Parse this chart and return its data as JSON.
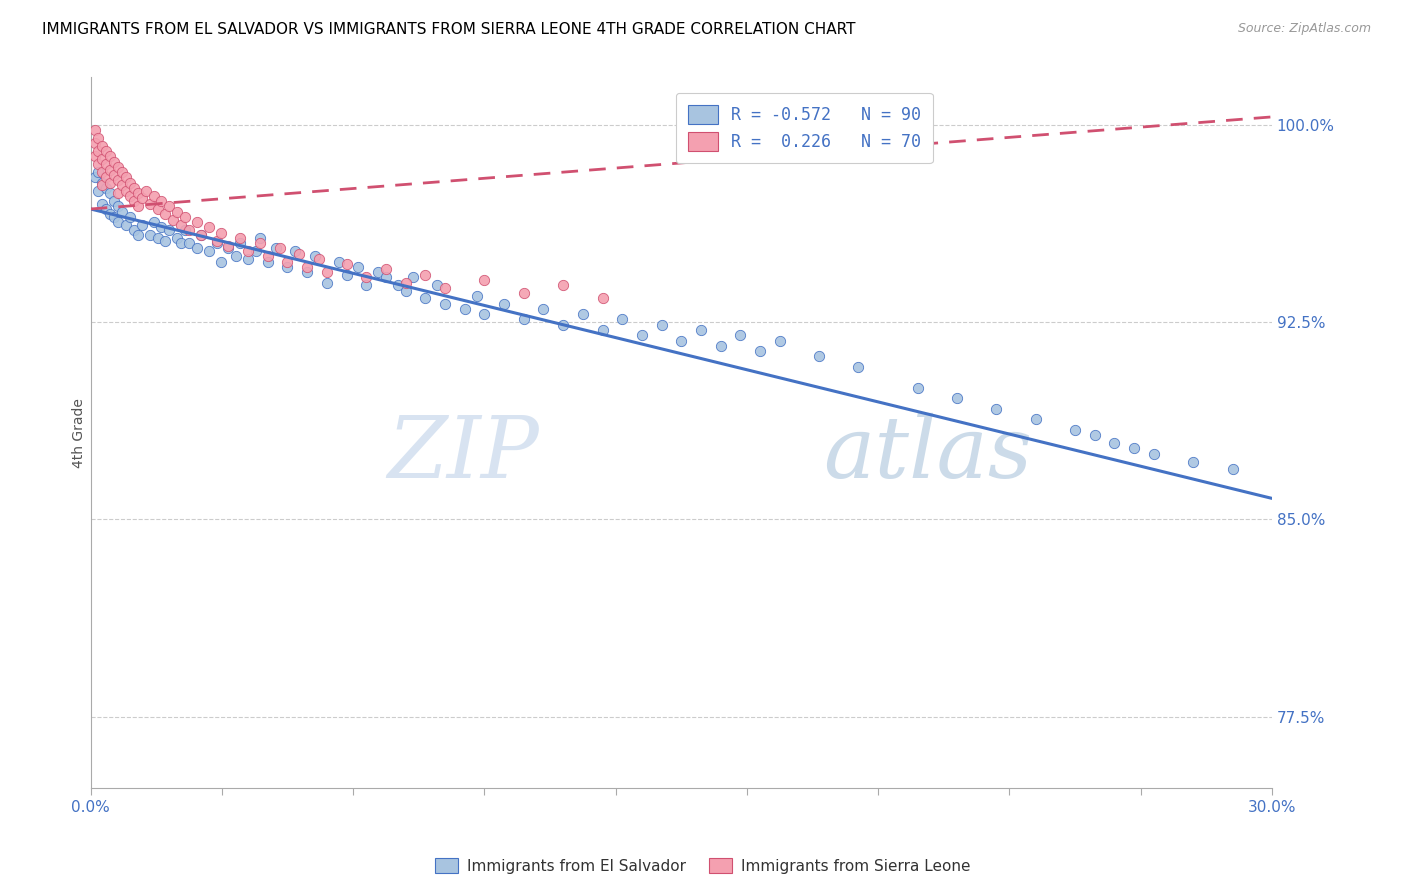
{
  "title": "IMMIGRANTS FROM EL SALVADOR VS IMMIGRANTS FROM SIERRA LEONE 4TH GRADE CORRELATION CHART",
  "source": "Source: ZipAtlas.com",
  "ylabel": "4th Grade",
  "yticks": [
    1.0,
    0.925,
    0.85,
    0.775
  ],
  "ytick_labels": [
    "100.0%",
    "92.5%",
    "85.0%",
    "77.5%"
  ],
  "xmin": 0.0,
  "xmax": 0.3,
  "ymin": 0.748,
  "ymax": 1.018,
  "color_blue": "#a8c4e0",
  "color_pink": "#f4a0b0",
  "line_blue": "#4472c4",
  "line_pink": "#d05070",
  "legend_label1": "Immigrants from El Salvador",
  "legend_label2": "Immigrants from Sierra Leone",
  "watermark_zip": "ZIP",
  "watermark_atlas": "atlas",
  "blue_scatter_x": [
    0.001,
    0.002,
    0.002,
    0.003,
    0.003,
    0.004,
    0.004,
    0.005,
    0.005,
    0.006,
    0.006,
    0.007,
    0.007,
    0.008,
    0.009,
    0.01,
    0.011,
    0.012,
    0.013,
    0.015,
    0.016,
    0.017,
    0.018,
    0.019,
    0.02,
    0.022,
    0.023,
    0.024,
    0.025,
    0.027,
    0.028,
    0.03,
    0.032,
    0.033,
    0.035,
    0.037,
    0.038,
    0.04,
    0.042,
    0.043,
    0.045,
    0.047,
    0.05,
    0.052,
    0.055,
    0.057,
    0.06,
    0.063,
    0.065,
    0.068,
    0.07,
    0.073,
    0.075,
    0.078,
    0.08,
    0.082,
    0.085,
    0.088,
    0.09,
    0.095,
    0.098,
    0.1,
    0.105,
    0.11,
    0.115,
    0.12,
    0.125,
    0.13,
    0.135,
    0.14,
    0.145,
    0.15,
    0.155,
    0.16,
    0.165,
    0.17,
    0.175,
    0.185,
    0.195,
    0.21,
    0.22,
    0.23,
    0.24,
    0.25,
    0.255,
    0.26,
    0.265,
    0.27,
    0.28,
    0.29
  ],
  "blue_scatter_y": [
    0.98,
    0.982,
    0.975,
    0.978,
    0.97,
    0.976,
    0.968,
    0.974,
    0.966,
    0.971,
    0.965,
    0.969,
    0.963,
    0.967,
    0.962,
    0.965,
    0.96,
    0.958,
    0.962,
    0.958,
    0.963,
    0.957,
    0.961,
    0.956,
    0.96,
    0.957,
    0.955,
    0.96,
    0.955,
    0.953,
    0.958,
    0.952,
    0.955,
    0.948,
    0.953,
    0.95,
    0.955,
    0.949,
    0.952,
    0.957,
    0.948,
    0.953,
    0.946,
    0.952,
    0.944,
    0.95,
    0.94,
    0.948,
    0.943,
    0.946,
    0.939,
    0.944,
    0.942,
    0.939,
    0.937,
    0.942,
    0.934,
    0.939,
    0.932,
    0.93,
    0.935,
    0.928,
    0.932,
    0.926,
    0.93,
    0.924,
    0.928,
    0.922,
    0.926,
    0.92,
    0.924,
    0.918,
    0.922,
    0.916,
    0.92,
    0.914,
    0.918,
    0.912,
    0.908,
    0.9,
    0.896,
    0.892,
    0.888,
    0.884,
    0.882,
    0.879,
    0.877,
    0.875,
    0.872,
    0.869
  ],
  "pink_scatter_x": [
    0.001,
    0.001,
    0.001,
    0.002,
    0.002,
    0.002,
    0.003,
    0.003,
    0.003,
    0.003,
    0.004,
    0.004,
    0.004,
    0.005,
    0.005,
    0.005,
    0.006,
    0.006,
    0.007,
    0.007,
    0.007,
    0.008,
    0.008,
    0.009,
    0.009,
    0.01,
    0.01,
    0.011,
    0.011,
    0.012,
    0.012,
    0.013,
    0.014,
    0.015,
    0.016,
    0.017,
    0.018,
    0.019,
    0.02,
    0.021,
    0.022,
    0.023,
    0.024,
    0.025,
    0.027,
    0.028,
    0.03,
    0.032,
    0.033,
    0.035,
    0.038,
    0.04,
    0.043,
    0.045,
    0.048,
    0.05,
    0.053,
    0.055,
    0.058,
    0.06,
    0.065,
    0.07,
    0.075,
    0.08,
    0.085,
    0.09,
    0.1,
    0.11,
    0.12,
    0.13
  ],
  "pink_scatter_y": [
    0.998,
    0.993,
    0.988,
    0.995,
    0.99,
    0.985,
    0.992,
    0.987,
    0.982,
    0.977,
    0.99,
    0.985,
    0.98,
    0.988,
    0.983,
    0.978,
    0.986,
    0.981,
    0.984,
    0.979,
    0.974,
    0.982,
    0.977,
    0.98,
    0.975,
    0.978,
    0.973,
    0.976,
    0.971,
    0.974,
    0.969,
    0.972,
    0.975,
    0.97,
    0.973,
    0.968,
    0.971,
    0.966,
    0.969,
    0.964,
    0.967,
    0.962,
    0.965,
    0.96,
    0.963,
    0.958,
    0.961,
    0.956,
    0.959,
    0.954,
    0.957,
    0.952,
    0.955,
    0.95,
    0.953,
    0.948,
    0.951,
    0.946,
    0.949,
    0.944,
    0.947,
    0.942,
    0.945,
    0.94,
    0.943,
    0.938,
    0.941,
    0.936,
    0.939,
    0.934
  ],
  "blue_line_x": [
    0.0,
    0.3
  ],
  "blue_line_y": [
    0.968,
    0.858
  ],
  "pink_line_x": [
    0.0,
    0.3
  ],
  "pink_line_y": [
    0.968,
    1.003
  ]
}
